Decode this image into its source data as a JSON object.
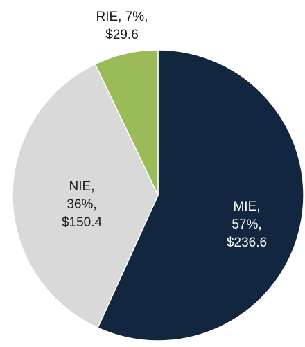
{
  "chart_data": {
    "type": "pie",
    "categories": [
      "MIE",
      "NIE",
      "RIE"
    ],
    "values": [
      236.6,
      150.4,
      29.6
    ],
    "percents": [
      57,
      36,
      7
    ],
    "data_labels": [
      "MIE, 57%, $236.6",
      "NIE, 36%, $150.4",
      "RIE, 7%, $29.6"
    ],
    "colors": [
      "#12263f",
      "#d9d9d9",
      "#9bbb59"
    ],
    "label_colors": [
      "#ffffff",
      "#1a1a1a",
      "#1a1a1a"
    ],
    "start_angle": 0,
    "direction": "clockwise"
  }
}
